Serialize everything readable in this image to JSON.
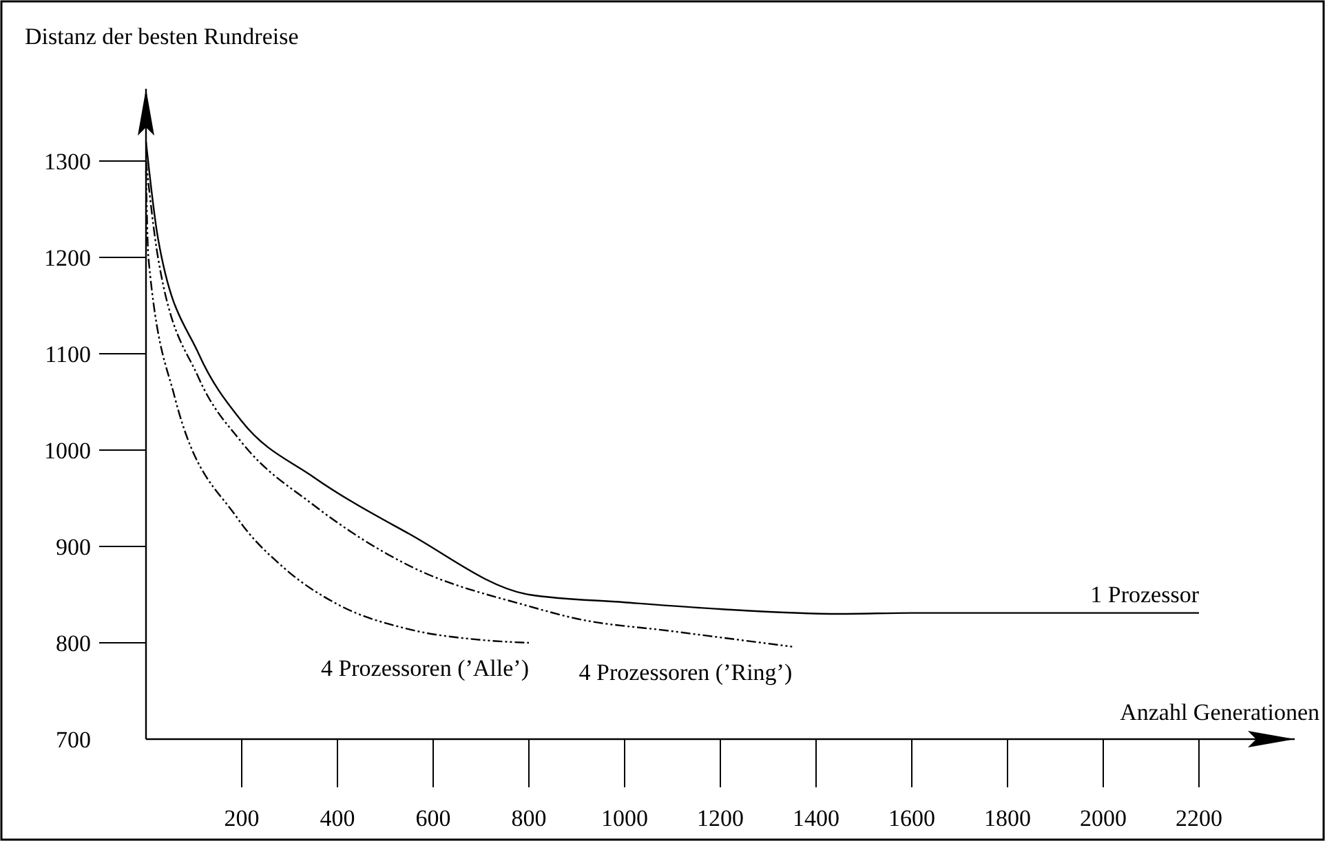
{
  "chart_data": {
    "type": "line",
    "ylabel": "Distanz der besten Rundreise",
    "xlabel": "Anzahl Generationen",
    "xlim": [
      0,
      2400
    ],
    "xticks": [
      200,
      400,
      600,
      800,
      1000,
      1200,
      1400,
      1600,
      1800,
      2000,
      2200
    ],
    "ylim": [
      700,
      1375
    ],
    "yticks": [
      700,
      800,
      900,
      1000,
      1100,
      1200,
      1300
    ],
    "grid": false,
    "legend": false,
    "marker": "none",
    "series": [
      {
        "name": "1 Prozessor",
        "color": "#000000",
        "line_style": "solid",
        "x": [
          0,
          25,
          110,
          200,
          350,
          550,
          800,
          1000,
          1200,
          1450,
          1600,
          2200
        ],
        "values": [
          1320,
          1220,
          1100,
          1030,
          972,
          913,
          850,
          842,
          835,
          830,
          831,
          831
        ]
      },
      {
        "name": "4 Prozessoren (’Alle’)",
        "color": "#000000",
        "line_style": "dashed",
        "x": [
          0,
          5,
          60,
          190,
          290,
          400,
          550,
          700,
          800
        ],
        "values": [
          1290,
          1200,
          1055,
          930,
          877,
          840,
          814,
          803,
          800
        ]
      },
      {
        "name": "4 Prozessoren (’Ring’)",
        "color": "#000000",
        "line_style": "dashed",
        "x": [
          0,
          25,
          110,
          200,
          350,
          550,
          800,
          900,
          1100,
          1350
        ],
        "values": [
          1300,
          1200,
          1075,
          1008,
          943,
          880,
          838,
          825,
          812,
          796
        ]
      }
    ]
  }
}
